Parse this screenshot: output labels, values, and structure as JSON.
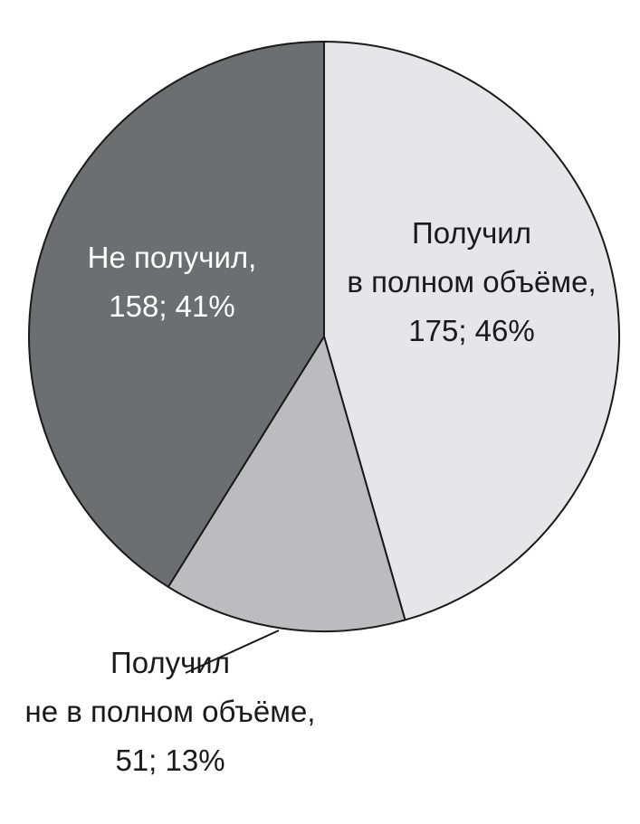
{
  "chart_data": {
    "type": "pie",
    "title": "",
    "slices": [
      {
        "label": [
          "Получил",
          "в полном объёме,",
          "175; 46%"
        ],
        "value": 175,
        "percent": 46,
        "color": "#e6e6e8"
      },
      {
        "label": [
          "Получил",
          "не в полном объёме,",
          "51; 13%"
        ],
        "value": 51,
        "percent": 13,
        "color": "#bcbcbe"
      },
      {
        "label": [
          "Не получил,",
          "158; 41%"
        ],
        "value": 158,
        "percent": 41,
        "color": "#6d6e71"
      }
    ],
    "start_angle": "12 o'clock",
    "direction": "clockwise",
    "label_colors": [
      "#1a1a1a",
      "#1a1a1a",
      "#ffffff"
    ]
  }
}
